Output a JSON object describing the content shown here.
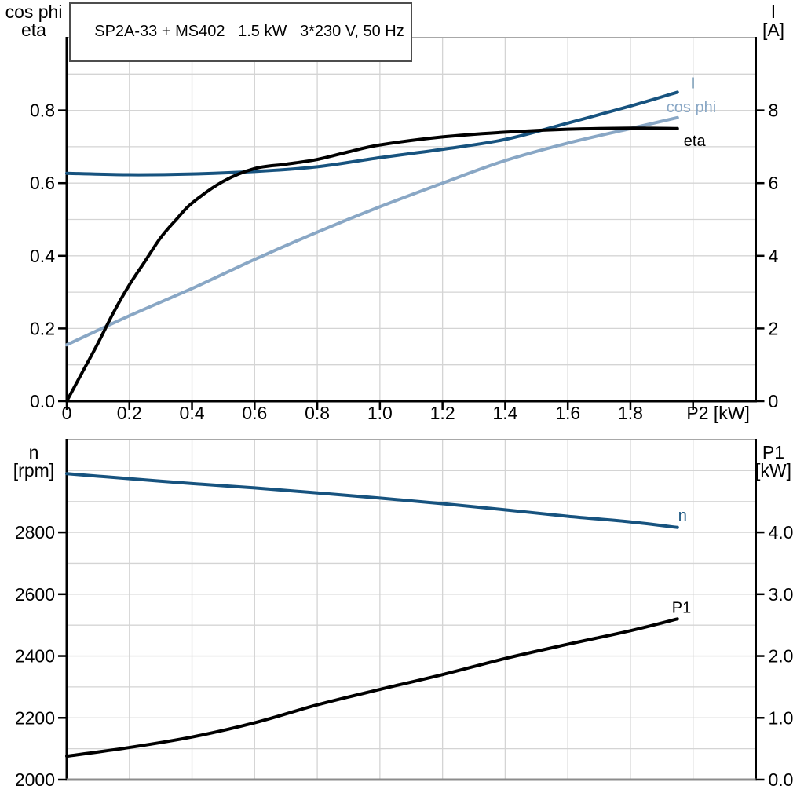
{
  "title": "SP2A-33 + MS402   1.5 kW   3*230 V, 50 Hz",
  "colors": {
    "dark_blue": "#17537f",
    "light_blue": "#89a7c5",
    "black": "#000000",
    "grid": "#d4d4d4",
    "frame_gray": "#a8a8a8",
    "axis_gray": "#8c8c8c",
    "axis_black": "#000000",
    "background": "#ffffff"
  },
  "chart_data": [
    {
      "name": "motor-performance-top",
      "type": "line",
      "x_axis": {
        "label": "P2 [kW]",
        "label_v": 2.08,
        "range": [
          0,
          2.2
        ],
        "grid_step": 0.2,
        "axis_color": "#000000",
        "ticks": [
          {
            "v": 0,
            "label": "0"
          },
          {
            "v": 0.2,
            "label": "0.2"
          },
          {
            "v": 0.4,
            "label": "0.4"
          },
          {
            "v": 0.6,
            "label": "0.6"
          },
          {
            "v": 0.8,
            "label": "0.8"
          },
          {
            "v": 1.0,
            "label": "1.0"
          },
          {
            "v": 1.2,
            "label": "1.2"
          },
          {
            "v": 1.4,
            "label": "1.4"
          },
          {
            "v": 1.6,
            "label": "1.6"
          },
          {
            "v": 1.8,
            "label": "1.8"
          },
          {
            "v": 2.0,
            "label": ""
          }
        ]
      },
      "left_axis": {
        "title_lines": [
          "cos phi",
          "eta"
        ],
        "range": [
          0,
          1.0
        ],
        "grid_step": 0.1,
        "ticks": [
          {
            "v": 0.0,
            "label": "0.0"
          },
          {
            "v": 0.2,
            "label": "0.2"
          },
          {
            "v": 0.4,
            "label": "0.4"
          },
          {
            "v": 0.6,
            "label": "0.6"
          },
          {
            "v": 0.8,
            "label": "0.8"
          }
        ]
      },
      "right_axis": {
        "title_lines": [
          "I",
          "[A]"
        ],
        "range": [
          0,
          10
        ],
        "ticks": [
          {
            "v": 0,
            "label": "0"
          },
          {
            "v": 2,
            "label": "2"
          },
          {
            "v": 4,
            "label": "4"
          },
          {
            "v": 6,
            "label": "6"
          },
          {
            "v": 8,
            "label": "8"
          }
        ]
      },
      "series": [
        {
          "name": "I",
          "axis": "right",
          "color_key": "dark_blue",
          "label_offset": [
            17,
            -5
          ],
          "points": [
            [
              0,
              6.27
            ],
            [
              0.2,
              6.23
            ],
            [
              0.4,
              6.25
            ],
            [
              0.6,
              6.32
            ],
            [
              0.8,
              6.45
            ],
            [
              1.0,
              6.7
            ],
            [
              1.2,
              6.93
            ],
            [
              1.4,
              7.2
            ],
            [
              1.6,
              7.65
            ],
            [
              1.8,
              8.12
            ],
            [
              1.95,
              8.5
            ]
          ]
        },
        {
          "name": "cos phi",
          "axis": "left",
          "color_key": "light_blue",
          "label_offset": [
            -14,
            -7
          ],
          "points": [
            [
              0,
              0.155
            ],
            [
              0.2,
              0.235
            ],
            [
              0.4,
              0.31
            ],
            [
              0.6,
              0.39
            ],
            [
              0.8,
              0.465
            ],
            [
              1.0,
              0.535
            ],
            [
              1.2,
              0.6
            ],
            [
              1.4,
              0.662
            ],
            [
              1.6,
              0.71
            ],
            [
              1.8,
              0.75
            ],
            [
              1.95,
              0.78
            ]
          ]
        },
        {
          "name": "eta",
          "axis": "left",
          "color_key": "black",
          "label_offset": [
            8,
            22
          ],
          "points": [
            [
              0,
              0
            ],
            [
              0.05,
              0.08
            ],
            [
              0.1,
              0.16
            ],
            [
              0.15,
              0.245
            ],
            [
              0.2,
              0.32
            ],
            [
              0.25,
              0.385
            ],
            [
              0.3,
              0.45
            ],
            [
              0.35,
              0.5
            ],
            [
              0.4,
              0.545
            ],
            [
              0.5,
              0.605
            ],
            [
              0.6,
              0.64
            ],
            [
              0.7,
              0.652
            ],
            [
              0.8,
              0.665
            ],
            [
              0.9,
              0.686
            ],
            [
              1.0,
              0.705
            ],
            [
              1.2,
              0.727
            ],
            [
              1.4,
              0.74
            ],
            [
              1.6,
              0.748
            ],
            [
              1.8,
              0.751
            ],
            [
              1.95,
              0.75
            ]
          ]
        }
      ]
    },
    {
      "name": "speed-power-bottom",
      "type": "line",
      "x_axis": {
        "label": "",
        "label_v": 2.08,
        "range": [
          0,
          2.2
        ],
        "grid_step": 0.2,
        "axis_color": "#8c8c8c",
        "ticks": []
      },
      "left_axis": {
        "title_lines": [
          "n",
          "[rpm]"
        ],
        "range": [
          2000,
          3100
        ],
        "grid_step": 100,
        "ticks": [
          {
            "v": 2000,
            "label": "2000"
          },
          {
            "v": 2200,
            "label": "2200"
          },
          {
            "v": 2400,
            "label": "2400"
          },
          {
            "v": 2600,
            "label": "2600"
          },
          {
            "v": 2800,
            "label": "2800"
          }
        ]
      },
      "right_axis": {
        "title_lines": [
          "P1",
          "[kW]"
        ],
        "range": [
          0,
          5.5
        ],
        "ticks": [
          {
            "v": 0.0,
            "label": "0.0"
          },
          {
            "v": 1.0,
            "label": "1.0"
          },
          {
            "v": 2.0,
            "label": "2.0"
          },
          {
            "v": 3.0,
            "label": "3.0"
          },
          {
            "v": 4.0,
            "label": "4.0"
          }
        ]
      },
      "series": [
        {
          "name": "n",
          "axis": "left",
          "color_key": "dark_blue",
          "label_offset": [
            1,
            -9
          ],
          "points": [
            [
              0,
              2990
            ],
            [
              0.2,
              2974
            ],
            [
              0.4,
              2958
            ],
            [
              0.6,
              2944
            ],
            [
              0.8,
              2928
            ],
            [
              1.0,
              2911
            ],
            [
              1.2,
              2893
            ],
            [
              1.4,
              2873
            ],
            [
              1.6,
              2852
            ],
            [
              1.8,
              2834
            ],
            [
              1.95,
              2816
            ]
          ]
        },
        {
          "name": "P1",
          "axis": "right",
          "color_key": "black",
          "label_offset": [
            -7,
            -8
          ],
          "points": [
            [
              0,
              0.38
            ],
            [
              0.2,
              0.52
            ],
            [
              0.4,
              0.69
            ],
            [
              0.6,
              0.92
            ],
            [
              0.8,
              1.21
            ],
            [
              1.0,
              1.46
            ],
            [
              1.2,
              1.7
            ],
            [
              1.4,
              1.96
            ],
            [
              1.6,
              2.19
            ],
            [
              1.8,
              2.41
            ],
            [
              1.95,
              2.6
            ]
          ]
        }
      ]
    }
  ]
}
